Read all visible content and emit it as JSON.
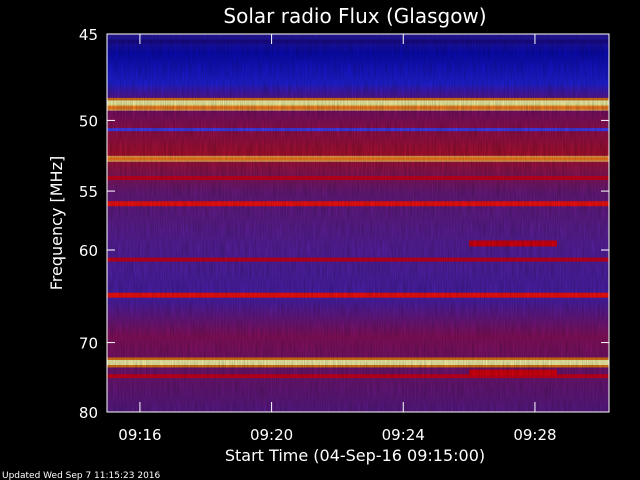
{
  "chart_data": {
    "type": "heatmap",
    "title": "Solar radio Flux (Glasgow)",
    "xlabel": "Start Time (04-Sep-16 09:15:00)",
    "ylabel": "Frequency [MHz]",
    "x_ticks": [
      "09:16",
      "09:20",
      "09:24",
      "09:28"
    ],
    "y_ticks": [
      45,
      50,
      55,
      60,
      70,
      80
    ],
    "ylim": [
      45,
      80
    ],
    "y_scale": "reciprocal",
    "x_range": [
      "09:15:00",
      "09:30:15"
    ],
    "colormap": [
      "#0000a0",
      "#3030d0",
      "#a00080",
      "#e00000",
      "#ff8000",
      "#ffff80"
    ],
    "bands": [
      {
        "freq": 45.4,
        "level": "low"
      },
      {
        "freq": 48.9,
        "level": "saturated"
      },
      {
        "freq": 49.2,
        "level": "high"
      },
      {
        "freq": 50.6,
        "level": "medium-low"
      },
      {
        "freq": 52.6,
        "level": "high"
      },
      {
        "freq": 54.0,
        "level": "medium"
      },
      {
        "freq": 56.0,
        "level": "medium-high"
      },
      {
        "freq": 60.9,
        "level": "medium"
      },
      {
        "freq": 64.5,
        "level": "medium-high"
      },
      {
        "freq": 72.6,
        "level": "saturated"
      },
      {
        "freq": 74.5,
        "level": "medium"
      }
    ],
    "bursts": [
      {
        "start": "09:26:00",
        "end": "09:28:40",
        "freq": 59.4
      },
      {
        "start": "09:26:00",
        "end": "09:28:40",
        "freq": 74.0
      }
    ]
  },
  "footer": {
    "updated": "Updated Wed Sep  7 11:15:23 2016"
  },
  "colors": {
    "background": "#000000",
    "axis": "#ffffff"
  }
}
